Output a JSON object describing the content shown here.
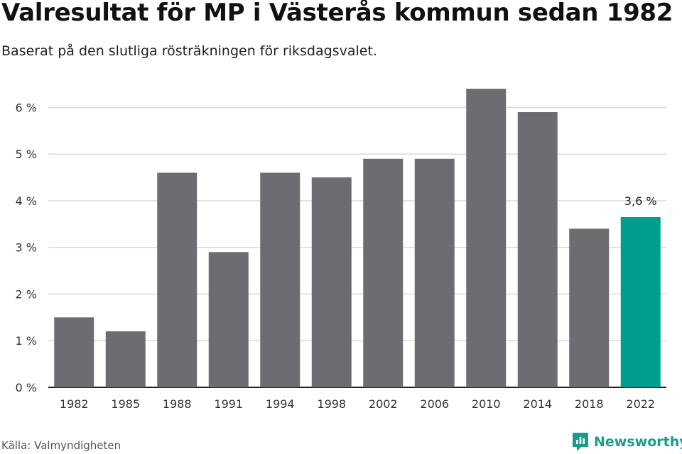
{
  "header": {
    "title": "Valresultat för MP i Västerås kommun sedan 1982",
    "subtitle": "Baserat på den slutliga rösträkningen för riksdagsvalet."
  },
  "footer": {
    "source": "Källa: Valmyndigheten",
    "brand": "Newsworthy",
    "brand_icon": "newsworthy-logo-icon"
  },
  "colors": {
    "bar": "#6d6c71",
    "highlight": "#009e8e",
    "grid": "#d9d9d9",
    "axis": "#222222"
  },
  "chart_data": {
    "type": "bar",
    "categories": [
      "1982",
      "1985",
      "1988",
      "1991",
      "1994",
      "1998",
      "2002",
      "2006",
      "2010",
      "2014",
      "2018",
      "2022"
    ],
    "values": [
      1.5,
      1.2,
      4.6,
      2.9,
      4.6,
      4.5,
      4.9,
      4.9,
      6.4,
      5.9,
      3.4,
      3.65
    ],
    "highlight_index": 11,
    "annotations": [
      {
        "category": "2022",
        "label": "3,6 %"
      }
    ],
    "yticks": [
      {
        "value": 0,
        "label": "0 %"
      },
      {
        "value": 1,
        "label": "1 %"
      },
      {
        "value": 2,
        "label": "2 %"
      },
      {
        "value": 3,
        "label": "3 %"
      },
      {
        "value": 4,
        "label": "4 %"
      },
      {
        "value": 5,
        "label": "5 %"
      },
      {
        "value": 6,
        "label": "6 %"
      }
    ],
    "ylim": [
      0,
      6.6
    ],
    "grid": true,
    "legend": "none"
  }
}
